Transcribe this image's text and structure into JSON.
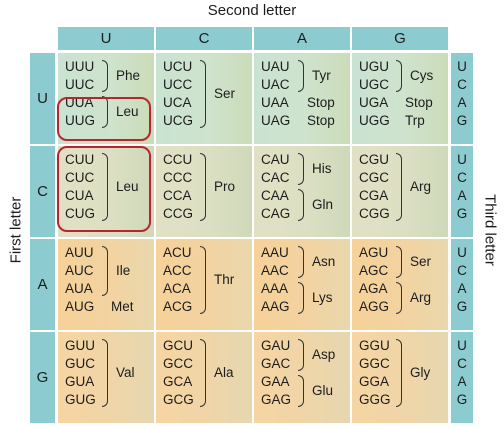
{
  "titles": {
    "second": "Second letter",
    "first": "First letter",
    "third": "Third letter"
  },
  "second_letters": [
    "U",
    "C",
    "A",
    "G"
  ],
  "first_letters": [
    "U",
    "C",
    "A",
    "G"
  ],
  "third_letters": [
    "U",
    "C",
    "A",
    "G"
  ],
  "colors": {
    "header": "#8ccbcf",
    "highlight": "#b8262d"
  },
  "cells": [
    [
      {
        "codons": [
          "UUU",
          "UUC",
          "UUA",
          "UUG"
        ],
        "groups": [
          {
            "from": 0,
            "to": 1,
            "aa": "Phe"
          },
          {
            "from": 2,
            "to": 3,
            "aa": "Leu"
          }
        ]
      },
      {
        "codons": [
          "UCU",
          "UCC",
          "UCA",
          "UCG"
        ],
        "groups": [
          {
            "from": 0,
            "to": 3,
            "aa": "Ser"
          }
        ]
      },
      {
        "codons": [
          "UAU",
          "UAC",
          "UAA",
          "UAG"
        ],
        "groups": [
          {
            "from": 0,
            "to": 1,
            "aa": "Tyr"
          },
          {
            "from": 2,
            "to": 2,
            "aa": "Stop",
            "plain": true
          },
          {
            "from": 3,
            "to": 3,
            "aa": "Stop",
            "plain": true
          }
        ]
      },
      {
        "codons": [
          "UGU",
          "UGC",
          "UGA",
          "UGG"
        ],
        "groups": [
          {
            "from": 0,
            "to": 1,
            "aa": "Cys"
          },
          {
            "from": 2,
            "to": 2,
            "aa": "Stop",
            "plain": true
          },
          {
            "from": 3,
            "to": 3,
            "aa": "Trp",
            "plain": true
          }
        ]
      }
    ],
    [
      {
        "codons": [
          "CUU",
          "CUC",
          "CUA",
          "CUG"
        ],
        "groups": [
          {
            "from": 0,
            "to": 3,
            "aa": "Leu"
          }
        ]
      },
      {
        "codons": [
          "CCU",
          "CCC",
          "CCA",
          "CCG"
        ],
        "groups": [
          {
            "from": 0,
            "to": 3,
            "aa": "Pro"
          }
        ]
      },
      {
        "codons": [
          "CAU",
          "CAC",
          "CAA",
          "CAG"
        ],
        "groups": [
          {
            "from": 0,
            "to": 1,
            "aa": "His"
          },
          {
            "from": 2,
            "to": 3,
            "aa": "Gln"
          }
        ]
      },
      {
        "codons": [
          "CGU",
          "CGC",
          "CGA",
          "CGG"
        ],
        "groups": [
          {
            "from": 0,
            "to": 3,
            "aa": "Arg"
          }
        ]
      }
    ],
    [
      {
        "codons": [
          "AUU",
          "AUC",
          "AUA",
          "AUG"
        ],
        "groups": [
          {
            "from": 0,
            "to": 2,
            "aa": "Ile"
          },
          {
            "from": 3,
            "to": 3,
            "aa": "Met",
            "plain": true
          }
        ]
      },
      {
        "codons": [
          "ACU",
          "ACC",
          "ACA",
          "ACG"
        ],
        "groups": [
          {
            "from": 0,
            "to": 3,
            "aa": "Thr"
          }
        ]
      },
      {
        "codons": [
          "AAU",
          "AAC",
          "AAA",
          "AAG"
        ],
        "groups": [
          {
            "from": 0,
            "to": 1,
            "aa": "Asn"
          },
          {
            "from": 2,
            "to": 3,
            "aa": "Lys"
          }
        ]
      },
      {
        "codons": [
          "AGU",
          "AGC",
          "AGA",
          "AGG"
        ],
        "groups": [
          {
            "from": 0,
            "to": 1,
            "aa": "Ser"
          },
          {
            "from": 2,
            "to": 3,
            "aa": "Arg"
          }
        ]
      }
    ],
    [
      {
        "codons": [
          "GUU",
          "GUC",
          "GUA",
          "GUG"
        ],
        "groups": [
          {
            "from": 0,
            "to": 3,
            "aa": "Val"
          }
        ]
      },
      {
        "codons": [
          "GCU",
          "GCC",
          "GCA",
          "GCG"
        ],
        "groups": [
          {
            "from": 0,
            "to": 3,
            "aa": "Ala"
          }
        ]
      },
      {
        "codons": [
          "GAU",
          "GAC",
          "GAA",
          "GAG"
        ],
        "groups": [
          {
            "from": 0,
            "to": 1,
            "aa": "Asp"
          },
          {
            "from": 2,
            "to": 3,
            "aa": "Glu"
          }
        ]
      },
      {
        "codons": [
          "GGU",
          "GGC",
          "GGA",
          "GGG"
        ],
        "groups": [
          {
            "from": 0,
            "to": 3,
            "aa": "Gly"
          }
        ]
      }
    ]
  ]
}
